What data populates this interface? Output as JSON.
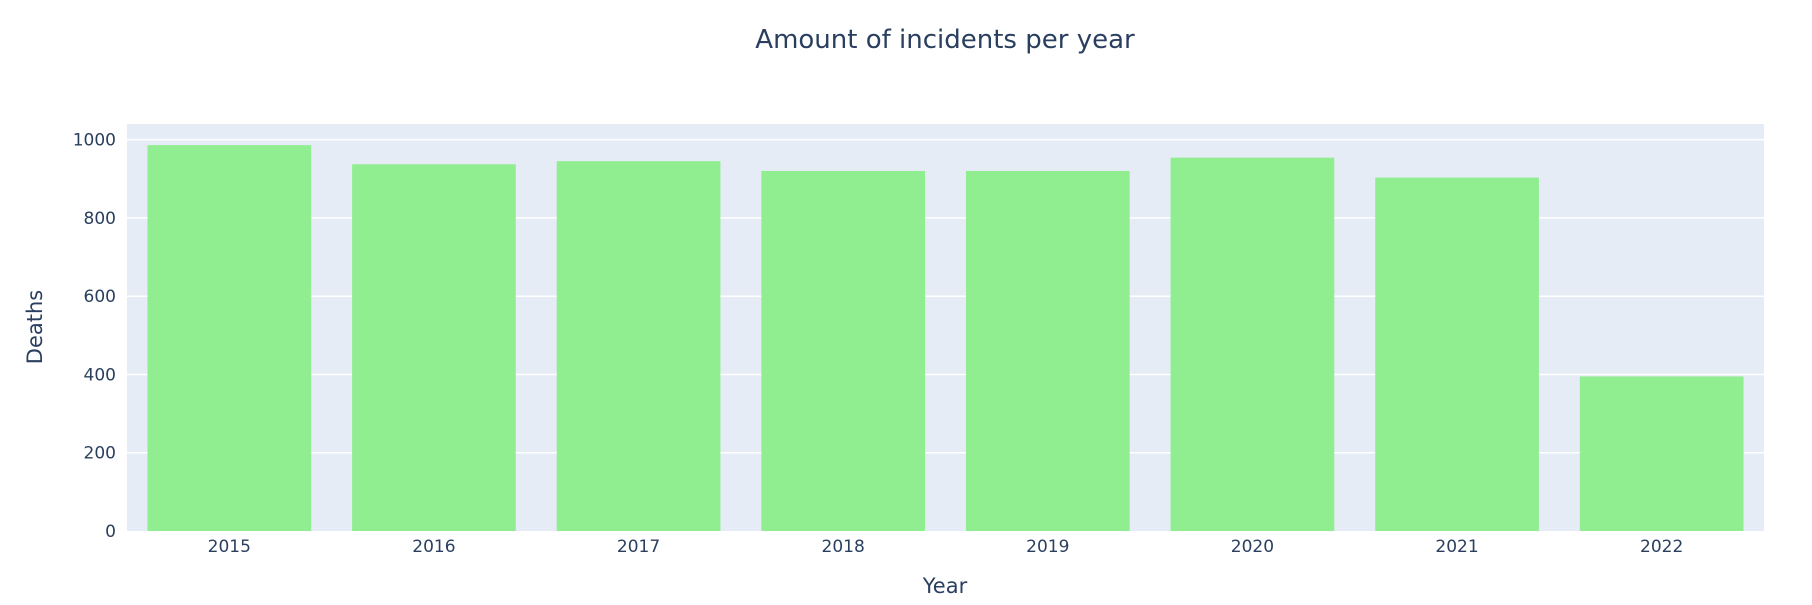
{
  "chart_data": {
    "type": "bar",
    "title": "Amount of incidents per year",
    "xlabel": "Year",
    "ylabel": "Deaths",
    "categories": [
      "2015",
      "2016",
      "2017",
      "2018",
      "2019",
      "2020",
      "2021",
      "2022"
    ],
    "values": [
      986,
      937,
      945,
      920,
      920,
      954,
      903,
      395
    ],
    "ylim": [
      0,
      1040
    ],
    "yticks": [
      0,
      200,
      400,
      600,
      800,
      1000
    ],
    "grid": true,
    "legend": "none",
    "colors": {
      "bar": "#90EE90",
      "plot_background": "#E5ECF6",
      "gridline": "#FFFFFF",
      "text": "#2A3F5F"
    }
  }
}
